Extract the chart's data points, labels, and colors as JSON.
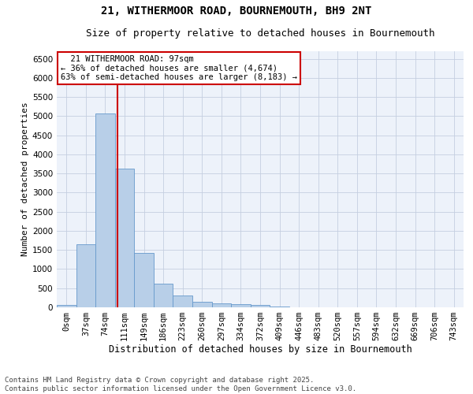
{
  "title1": "21, WITHERMOOR ROAD, BOURNEMOUTH, BH9 2NT",
  "title2": "Size of property relative to detached houses in Bournemouth",
  "xlabel": "Distribution of detached houses by size in Bournemouth",
  "ylabel": "Number of detached properties",
  "footer1": "Contains HM Land Registry data © Crown copyright and database right 2025.",
  "footer2": "Contains public sector information licensed under the Open Government Licence v3.0.",
  "annotation_line1": "  21 WITHERMOOR ROAD: 97sqm  ",
  "annotation_line2": "← 36% of detached houses are smaller (4,674)",
  "annotation_line3": "63% of semi-detached houses are larger (8,183) →",
  "bar_categories": [
    "0sqm",
    "37sqm",
    "74sqm",
    "111sqm",
    "149sqm",
    "186sqm",
    "223sqm",
    "260sqm",
    "297sqm",
    "334sqm",
    "372sqm",
    "409sqm",
    "446sqm",
    "483sqm",
    "520sqm",
    "557sqm",
    "594sqm",
    "632sqm",
    "669sqm",
    "706sqm",
    "743sqm"
  ],
  "bar_values": [
    60,
    1640,
    5080,
    3620,
    1430,
    615,
    305,
    140,
    100,
    75,
    55,
    30,
    0,
    0,
    0,
    0,
    0,
    0,
    0,
    0,
    0
  ],
  "bar_color": "#b8cfe8",
  "bar_edge_color": "#6699cc",
  "vline_color": "#cc0000",
  "annotation_box_facecolor": "#ffffff",
  "annotation_border_color": "#cc0000",
  "background_color": "#edf2fa",
  "ylim": [
    0,
    6700
  ],
  "yticks": [
    0,
    500,
    1000,
    1500,
    2000,
    2500,
    3000,
    3500,
    4000,
    4500,
    5000,
    5500,
    6000,
    6500
  ],
  "grid_color": "#c5cfe0",
  "title1_fontsize": 10,
  "title2_fontsize": 9,
  "xlabel_fontsize": 8.5,
  "ylabel_fontsize": 8,
  "tick_fontsize": 7.5,
  "footer_fontsize": 6.5,
  "annotation_fontsize": 7.5
}
